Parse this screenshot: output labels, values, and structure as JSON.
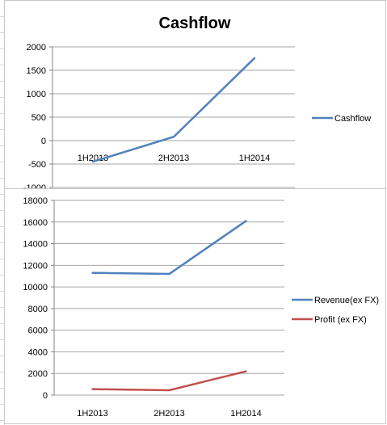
{
  "chart_data": [
    {
      "type": "line",
      "title": "Cashflow",
      "categories": [
        "1H2013",
        "2H2013",
        "1H2014"
      ],
      "series": [
        {
          "name": "Cashflow",
          "values": [
            -450,
            80,
            1760
          ],
          "color": "#4f81bd"
        }
      ],
      "ylim": [
        -1000,
        2000
      ],
      "yticks": [
        "2000",
        "1500",
        "1000",
        "500",
        "0",
        "-500",
        "-1000"
      ],
      "grid": true,
      "legend": "right"
    },
    {
      "type": "line",
      "title": "",
      "categories": [
        "1H2013",
        "2H2013",
        "1H2014"
      ],
      "series": [
        {
          "name": "Revenue(ex FX)",
          "values": [
            11300,
            11200,
            16100
          ],
          "color": "#4f81bd"
        },
        {
          "name": "Profit (ex FX)",
          "values": [
            550,
            450,
            2200
          ],
          "color": "#c0504d"
        }
      ],
      "ylim": [
        0,
        18000
      ],
      "yticks": [
        "18000",
        "16000",
        "14000",
        "12000",
        "10000",
        "8000",
        "6000",
        "4000",
        "2000",
        "0"
      ],
      "grid": true,
      "legend": "right"
    }
  ]
}
